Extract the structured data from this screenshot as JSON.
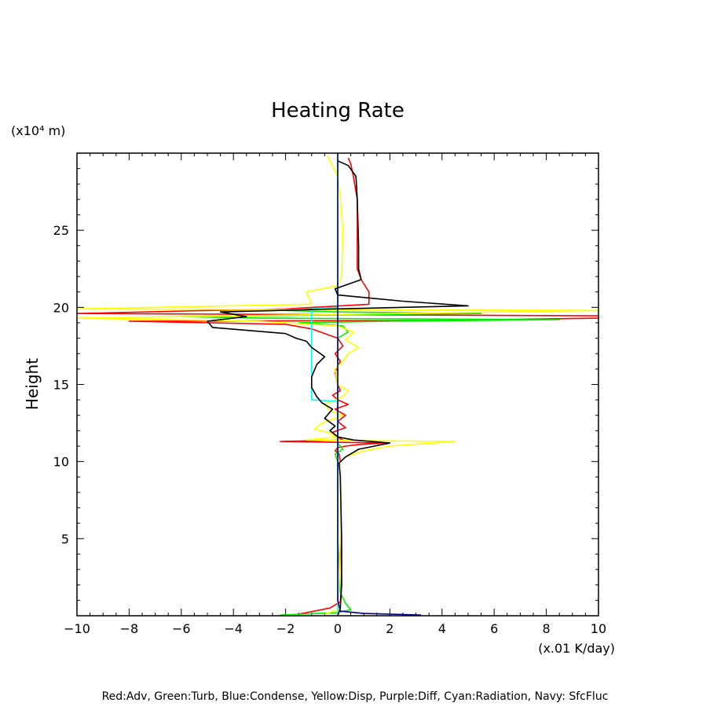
{
  "chart_data": {
    "type": "line",
    "title": "Heating Rate",
    "xlabel": "(x.01 K/day)",
    "ylabel": "Height",
    "y_unit_label": "(x10⁴ m)",
    "legend_text": "Red:Adv, Green:Turb, Blue:Condense, Yellow:Disp, Purple:Diff, Cyan:Radiation, Navy: SfcFluc",
    "xlim": [
      -10,
      10
    ],
    "ylim": [
      0,
      30
    ],
    "x_ticks": [
      -10,
      -8,
      -6,
      -4,
      -2,
      0,
      2,
      4,
      6,
      8,
      10
    ],
    "y_ticks": [
      5,
      10,
      15,
      20,
      25
    ],
    "grid": false,
    "total_color": "#000000",
    "series": [
      {
        "name": "Red:Adv",
        "color": "#ff0000",
        "points": [
          [
            -1.5,
            0.1
          ],
          [
            -0.3,
            0.5
          ],
          [
            0.1,
            0.9
          ],
          [
            0.15,
            2
          ],
          [
            0.12,
            5
          ],
          [
            0.1,
            8
          ],
          [
            0.1,
            10
          ],
          [
            0.05,
            10.5
          ],
          [
            -0.1,
            10.7
          ],
          [
            0.0,
            10.9
          ],
          [
            0.3,
            11.0
          ],
          [
            0.8,
            11.1
          ],
          [
            1.8,
            11.2
          ],
          [
            -2.2,
            11.3
          ],
          [
            0.2,
            11.4
          ],
          [
            0.0,
            11.6
          ],
          [
            -0.2,
            11.9
          ],
          [
            0.3,
            12.2
          ],
          [
            0.0,
            12.6
          ],
          [
            0.3,
            13.0
          ],
          [
            -0.1,
            13.4
          ],
          [
            0.4,
            13.7
          ],
          [
            0.0,
            14.0
          ],
          [
            -0.2,
            14.3
          ],
          [
            0.1,
            14.6
          ],
          [
            0.0,
            15.0
          ],
          [
            -0.1,
            15.8
          ],
          [
            0.1,
            16.5
          ],
          [
            -0.1,
            17.0
          ],
          [
            0.2,
            17.5
          ],
          [
            0.0,
            18.0
          ],
          [
            -1.0,
            18.6
          ],
          [
            -2.0,
            18.9
          ],
          [
            -8.0,
            19.1
          ],
          [
            4.0,
            19.15
          ],
          [
            10.0,
            19.3
          ],
          [
            10.0,
            19.45
          ],
          [
            -10.0,
            19.6
          ],
          [
            -5.0,
            19.8
          ],
          [
            -2.0,
            19.9
          ],
          [
            1.2,
            20.2
          ],
          [
            1.2,
            21.0
          ],
          [
            0.9,
            21.8
          ],
          [
            0.75,
            22.5
          ],
          [
            0.75,
            25.0
          ],
          [
            0.75,
            27.0
          ],
          [
            0.6,
            28.5
          ],
          [
            0.5,
            29.3
          ],
          [
            0.4,
            29.7
          ]
        ]
      },
      {
        "name": "Green:Turb",
        "color": "#00ee00",
        "points": [
          [
            -2.2,
            0.05
          ],
          [
            0.0,
            0.2
          ],
          [
            0.5,
            0.4
          ],
          [
            0.3,
            0.8
          ],
          [
            0.1,
            1.5
          ],
          [
            0.0,
            5.0
          ],
          [
            0.0,
            10.0
          ],
          [
            -0.1,
            10.5
          ],
          [
            0.2,
            10.8
          ],
          [
            0.0,
            11.2
          ],
          [
            0.0,
            18.0
          ],
          [
            0.4,
            18.4
          ],
          [
            0.2,
            18.8
          ],
          [
            -1.5,
            19.0
          ],
          [
            2.0,
            19.1
          ],
          [
            8.5,
            19.2
          ],
          [
            -3.0,
            19.3
          ],
          [
            -6.0,
            19.4
          ],
          [
            2.0,
            19.55
          ],
          [
            5.5,
            19.6
          ],
          [
            0.0,
            19.7
          ],
          [
            -2.0,
            19.8
          ],
          [
            0.0,
            20.0
          ]
        ]
      },
      {
        "name": "Yellow:Disp",
        "color": "#ffff00",
        "points": [
          [
            -0.5,
            0.1
          ],
          [
            0.0,
            0.4
          ],
          [
            0.05,
            2.0
          ],
          [
            0.1,
            5.0
          ],
          [
            0.1,
            10.0
          ],
          [
            0.3,
            10.3
          ],
          [
            1.0,
            10.7
          ],
          [
            2.0,
            11.0
          ],
          [
            4.5,
            11.3
          ],
          [
            -1.2,
            11.4
          ],
          [
            0.0,
            11.6
          ],
          [
            -0.4,
            11.9
          ],
          [
            -0.9,
            12.1
          ],
          [
            -0.6,
            12.5
          ],
          [
            0.2,
            13.0
          ],
          [
            -0.3,
            13.3
          ],
          [
            -0.5,
            13.7
          ],
          [
            0.2,
            14.2
          ],
          [
            0.4,
            14.6
          ],
          [
            0.0,
            15.0
          ],
          [
            -0.1,
            16.0
          ],
          [
            0.2,
            16.5
          ],
          [
            0.4,
            17.0
          ],
          [
            0.8,
            17.4
          ],
          [
            0.3,
            17.9
          ],
          [
            0.6,
            18.4
          ],
          [
            0.0,
            18.8
          ],
          [
            -3.0,
            19.1
          ],
          [
            -10.0,
            19.3
          ],
          [
            10.0,
            19.8
          ],
          [
            -10.0,
            19.9
          ],
          [
            -1.0,
            20.2
          ],
          [
            -1.2,
            21.0
          ],
          [
            0.0,
            21.4
          ],
          [
            0.15,
            22.0
          ],
          [
            0.2,
            25.0
          ],
          [
            0.1,
            27.0
          ],
          [
            0.0,
            28.5
          ],
          [
            -0.3,
            29.5
          ],
          [
            -0.4,
            29.9
          ]
        ]
      },
      {
        "name": "Cyan:Radiation",
        "color": "#00ffff",
        "points": [
          [
            0.0,
            0.0
          ],
          [
            0.0,
            13.9
          ],
          [
            -1.0,
            14.0
          ],
          [
            -1.0,
            19.9
          ],
          [
            0.0,
            20.0
          ],
          [
            0.0,
            30.0
          ]
        ]
      },
      {
        "name": "Navy: SfcFluc",
        "color": "#000080",
        "points": [
          [
            3.2,
            0.05
          ],
          [
            1.0,
            0.15
          ],
          [
            0.1,
            0.3
          ],
          [
            0.0,
            1.0
          ],
          [
            0.0,
            30.0
          ]
        ]
      },
      {
        "name": "Total",
        "color": "#000000",
        "points": [
          [
            0.0,
            0.0
          ],
          [
            0.1,
            0.5
          ],
          [
            0.15,
            2.0
          ],
          [
            0.15,
            5.0
          ],
          [
            0.1,
            9.0
          ],
          [
            0.05,
            9.9
          ],
          [
            0.3,
            10.3
          ],
          [
            0.8,
            10.8
          ],
          [
            2.0,
            11.2
          ],
          [
            0.6,
            11.4
          ],
          [
            0.0,
            11.6
          ],
          [
            -0.3,
            12.0
          ],
          [
            -0.1,
            12.3
          ],
          [
            -0.5,
            12.8
          ],
          [
            -0.2,
            13.4
          ],
          [
            -0.6,
            13.8
          ],
          [
            -0.8,
            14.2
          ],
          [
            -1.0,
            14.8
          ],
          [
            -1.0,
            15.5
          ],
          [
            -0.8,
            16.3
          ],
          [
            -0.5,
            16.8
          ],
          [
            -1.0,
            17.4
          ],
          [
            -1.2,
            17.8
          ],
          [
            -1.6,
            18.0
          ],
          [
            -2.0,
            18.3
          ],
          [
            -4.8,
            18.7
          ],
          [
            -5.0,
            19.1
          ],
          [
            -3.5,
            19.4
          ],
          [
            -4.5,
            19.7
          ],
          [
            0.0,
            19.9
          ],
          [
            5.0,
            20.1
          ],
          [
            2.5,
            20.4
          ],
          [
            0.0,
            20.8
          ],
          [
            -0.1,
            21.2
          ],
          [
            0.9,
            21.8
          ],
          [
            0.8,
            22.5
          ],
          [
            0.8,
            24.0
          ],
          [
            0.75,
            27.0
          ],
          [
            0.7,
            28.5
          ],
          [
            0.4,
            29.2
          ],
          [
            0.0,
            29.5
          ]
        ]
      }
    ]
  }
}
